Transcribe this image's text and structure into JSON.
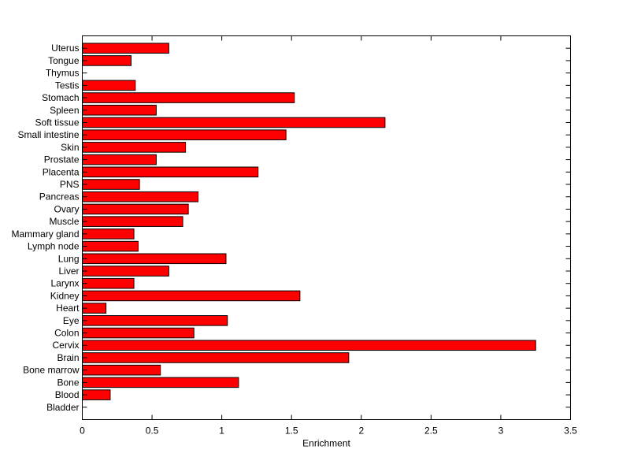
{
  "chart_data": {
    "type": "bar",
    "orientation": "horizontal",
    "xlabel": "Enrichment",
    "ylabel": "",
    "title": "",
    "xlim": [
      0,
      3.5
    ],
    "xticks": [
      "0",
      "0.5",
      "1",
      "1.5",
      "2",
      "2.5",
      "3",
      "3.5"
    ],
    "grid": false,
    "legend": "none",
    "bar_color": "#ff0000",
    "categories": [
      "Bladder",
      "Blood",
      "Bone",
      "Bone marrow",
      "Brain",
      "Cervix",
      "Colon",
      "Eye",
      "Heart",
      "Kidney",
      "Larynx",
      "Liver",
      "Lung",
      "Lymph node",
      "Mammary gland",
      "Muscle",
      "Ovary",
      "Pancreas",
      "PNS",
      "Placenta",
      "Prostate",
      "Skin",
      "Small intestine",
      "Soft tissue",
      "Spleen",
      "Stomach",
      "Testis",
      "Thymus",
      "Tongue",
      "Uterus"
    ],
    "values": [
      0,
      0.2,
      1.12,
      0.56,
      1.91,
      3.25,
      0.8,
      1.04,
      0.17,
      1.56,
      0.37,
      0.62,
      1.03,
      0.4,
      0.37,
      0.72,
      0.76,
      0.83,
      0.41,
      1.26,
      0.53,
      0.74,
      1.46,
      2.17,
      0.53,
      1.52,
      0.38,
      0,
      0.35,
      0.62
    ]
  }
}
